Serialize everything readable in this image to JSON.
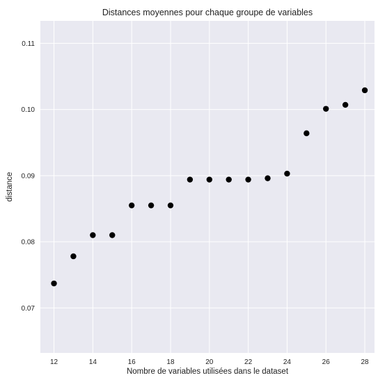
{
  "chart_data": {
    "type": "scatter",
    "title": "Distances moyennes pour chaque groupe de variables",
    "xlabel": "Nombre de variables utilisées dans le dataset",
    "ylabel": "distance",
    "xlim": [
      11.3,
      28.5
    ],
    "ylim": [
      0.0632,
      0.1134
    ],
    "x_ticks": [
      12,
      14,
      16,
      18,
      20,
      22,
      24,
      26,
      28
    ],
    "y_ticks": [
      0.07,
      0.08,
      0.09,
      0.1,
      0.11
    ],
    "y_tick_labels": [
      "0.07",
      "0.08",
      "0.09",
      "0.10",
      "0.11"
    ],
    "grid": true,
    "background_color": "#e9e9f1",
    "grid_color": "#ffffff",
    "marker_color": "#000000",
    "x": [
      12,
      13,
      14,
      15,
      16,
      17,
      18,
      19,
      20,
      21,
      22,
      23,
      24,
      25,
      26,
      27,
      28
    ],
    "y": [
      0.0737,
      0.0778,
      0.081,
      0.081,
      0.0855,
      0.0855,
      0.0855,
      0.0894,
      0.0894,
      0.0894,
      0.0894,
      0.0896,
      0.0903,
      0.0964,
      0.1001,
      0.1007,
      0.1029
    ]
  }
}
